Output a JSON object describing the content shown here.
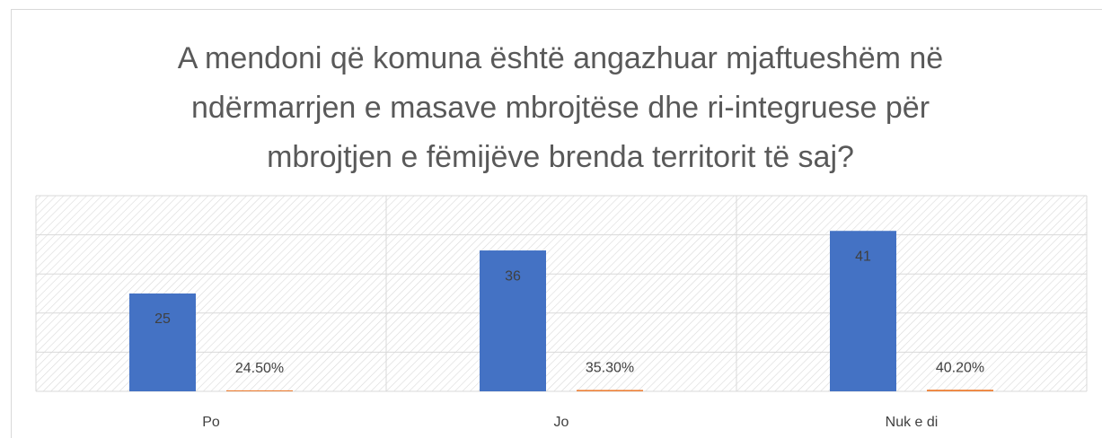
{
  "chart_data": {
    "type": "bar",
    "title": [
      "A mendoni që komuna është angazhuar mjaftueshëm në",
      "ndërmarrjen e masave mbrojtëse dhe ri-integruese për",
      "mbrojtjen e fëmijëve brenda territorit të saj?"
    ],
    "categories": [
      "Po",
      "Jo",
      "Nuk e di"
    ],
    "series": [
      {
        "color": "#4472c4",
        "values": [
          25,
          36,
          41
        ]
      },
      {
        "color": "#ed7d31",
        "values": [
          0.245,
          0.353,
          0.402
        ],
        "value_labels": [
          "24.50%",
          "35.30%",
          "40.20%"
        ]
      }
    ],
    "ylim": [
      0,
      50
    ],
    "yticks": [
      0,
      10,
      20,
      30,
      40,
      50
    ],
    "grid": true
  }
}
